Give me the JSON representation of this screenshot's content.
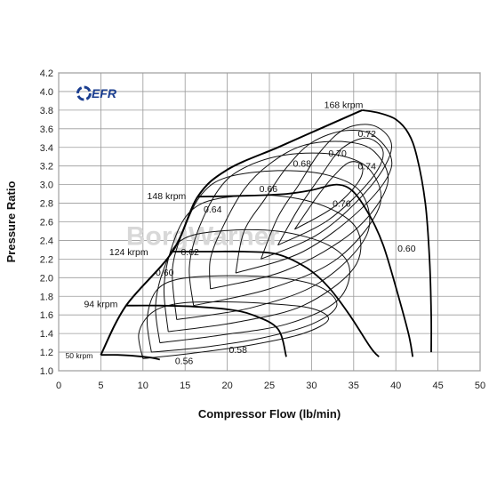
{
  "chart_data": {
    "type": "line",
    "title": "",
    "xlabel": "Compressor Flow (lb/min)",
    "ylabel": "Pressure Ratio",
    "xlim": [
      0,
      50
    ],
    "ylim": [
      1.0,
      4.2
    ],
    "x_ticks": [
      "0",
      "5",
      "10",
      "15",
      "20",
      "25",
      "30",
      "35",
      "40",
      "45",
      "50"
    ],
    "y_ticks": [
      "1.0",
      "1.2",
      "1.4",
      "1.6",
      "1.8",
      "2.0",
      "2.2",
      "2.4",
      "2.6",
      "2.8",
      "3.0",
      "3.2",
      "3.4",
      "3.6",
      "3.8",
      "4.0",
      "4.2"
    ],
    "grid": true,
    "logo": "EFR",
    "watermark": "BorgWarner",
    "speed_lines": [
      {
        "name": "50 krpm",
        "points": [
          [
            5,
            1.17
          ],
          [
            7,
            1.17
          ],
          [
            9,
            1.16
          ],
          [
            11,
            1.14
          ],
          [
            12,
            1.12
          ]
        ]
      },
      {
        "name": "94 krpm",
        "points": [
          [
            8,
            1.7
          ],
          [
            12,
            1.7
          ],
          [
            16,
            1.69
          ],
          [
            20,
            1.66
          ],
          [
            23,
            1.6
          ],
          [
            26,
            1.45
          ],
          [
            27,
            1.15
          ]
        ]
      },
      {
        "name": "124 krpm",
        "points": [
          [
            13.5,
            2.28
          ],
          [
            18,
            2.28
          ],
          [
            22,
            2.28
          ],
          [
            26,
            2.25
          ],
          [
            29.5,
            2.1
          ],
          [
            32,
            1.9
          ],
          [
            34.5,
            1.6
          ],
          [
            37,
            1.25
          ],
          [
            38,
            1.15
          ]
        ]
      },
      {
        "name": "148 krpm",
        "points": [
          [
            16.5,
            2.87
          ],
          [
            22,
            2.88
          ],
          [
            27,
            2.9
          ],
          [
            30,
            2.94
          ],
          [
            33,
            3.0
          ],
          [
            35,
            2.92
          ],
          [
            37,
            2.65
          ],
          [
            38.5,
            2.35
          ],
          [
            40,
            1.9
          ],
          [
            41.5,
            1.4
          ],
          [
            42,
            1.15
          ]
        ]
      },
      {
        "name": "168 krpm",
        "points": [
          [
            36,
            3.8
          ],
          [
            38,
            3.77
          ],
          [
            40,
            3.7
          ],
          [
            41.5,
            3.55
          ],
          [
            42.5,
            3.3
          ],
          [
            43.5,
            2.8
          ],
          [
            44,
            2.2
          ],
          [
            44.2,
            1.6
          ],
          [
            44.2,
            1.2
          ]
        ]
      }
    ],
    "surge_line": [
      [
        5,
        1.17
      ],
      [
        8,
        1.7
      ],
      [
        13.5,
        2.28
      ],
      [
        16.5,
        2.87
      ],
      [
        20,
        3.16
      ],
      [
        26,
        3.4
      ],
      [
        31,
        3.6
      ],
      [
        36,
        3.8
      ]
    ],
    "efficiency_islands": [
      {
        "label": "0.56",
        "points": [
          [
            10,
            1.13
          ],
          [
            16,
            1.19
          ],
          [
            23,
            1.28
          ],
          [
            29,
            1.4
          ],
          [
            32,
            1.55
          ],
          [
            30,
            1.67
          ],
          [
            25,
            1.72
          ],
          [
            19,
            1.74
          ],
          [
            14,
            1.72
          ],
          [
            11,
            1.62
          ],
          [
            9.5,
            1.4
          ],
          [
            10,
            1.13
          ]
        ]
      },
      {
        "label": "0.58",
        "points": [
          [
            11,
            1.2
          ],
          [
            17,
            1.25
          ],
          [
            24,
            1.35
          ],
          [
            30,
            1.5
          ],
          [
            33,
            1.7
          ],
          [
            31,
            1.9
          ],
          [
            26,
            2.0
          ],
          [
            19,
            2.02
          ],
          [
            14,
            1.98
          ],
          [
            11.5,
            1.85
          ],
          [
            10.5,
            1.55
          ],
          [
            11,
            1.2
          ]
        ]
      },
      {
        "label": "0.60",
        "points": [
          [
            12,
            1.3
          ],
          [
            19,
            1.38
          ],
          [
            27,
            1.5
          ],
          [
            33,
            1.75
          ],
          [
            34.5,
            2.1
          ],
          [
            32,
            2.35
          ],
          [
            26,
            2.5
          ],
          [
            19,
            2.5
          ],
          [
            14.5,
            2.4
          ],
          [
            12.5,
            2.1
          ],
          [
            11.5,
            1.7
          ],
          [
            12,
            1.3
          ]
        ]
      },
      {
        "label": "0.62",
        "points": [
          [
            13,
            1.42
          ],
          [
            21,
            1.52
          ],
          [
            29,
            1.7
          ],
          [
            35,
            2.1
          ],
          [
            35.5,
            2.5
          ],
          [
            32,
            2.75
          ],
          [
            26,
            2.88
          ],
          [
            19,
            2.85
          ],
          [
            15.5,
            2.7
          ],
          [
            13.5,
            2.35
          ],
          [
            12.5,
            1.9
          ],
          [
            13,
            1.42
          ]
        ]
      },
      {
        "label": "0.64",
        "points": [
          [
            14,
            1.55
          ],
          [
            23,
            1.68
          ],
          [
            31,
            1.95
          ],
          [
            36.5,
            2.45
          ],
          [
            36,
            2.9
          ],
          [
            32,
            3.1
          ],
          [
            26,
            3.15
          ],
          [
            20,
            3.08
          ],
          [
            17,
            2.9
          ],
          [
            15,
            2.55
          ],
          [
            13.5,
            2.1
          ],
          [
            14,
            1.55
          ]
        ]
      },
      {
        "label": "0.66",
        "points": [
          [
            16,
            1.7
          ],
          [
            25,
            1.88
          ],
          [
            33,
            2.2
          ],
          [
            38,
            2.75
          ],
          [
            37,
            3.15
          ],
          [
            33,
            3.32
          ],
          [
            27,
            3.32
          ],
          [
            22,
            3.18
          ],
          [
            19,
            2.95
          ],
          [
            16.5,
            2.5
          ],
          [
            15.5,
            2.1
          ],
          [
            16,
            1.7
          ]
        ]
      },
      {
        "label": "0.68",
        "points": [
          [
            18,
            1.88
          ],
          [
            27,
            2.08
          ],
          [
            35,
            2.5
          ],
          [
            39,
            3.0
          ],
          [
            37.5,
            3.35
          ],
          [
            34,
            3.46
          ],
          [
            29,
            3.42
          ],
          [
            25,
            3.22
          ],
          [
            22,
            2.95
          ],
          [
            19.5,
            2.55
          ],
          [
            18,
            2.2
          ],
          [
            18,
            1.88
          ]
        ]
      },
      {
        "label": "0.70",
        "points": [
          [
            21,
            2.05
          ],
          [
            29,
            2.28
          ],
          [
            36,
            2.75
          ],
          [
            39.5,
            3.2
          ],
          [
            37.5,
            3.52
          ],
          [
            34,
            3.58
          ],
          [
            30,
            3.45
          ],
          [
            27,
            3.18
          ],
          [
            24.5,
            2.85
          ],
          [
            22,
            2.5
          ],
          [
            21,
            2.05
          ]
        ]
      },
      {
        "label": "0.72",
        "points": [
          [
            24,
            2.2
          ],
          [
            31,
            2.48
          ],
          [
            37,
            2.98
          ],
          [
            39.5,
            3.4
          ],
          [
            37.5,
            3.63
          ],
          [
            34,
            3.6
          ],
          [
            31,
            3.35
          ],
          [
            28.5,
            3.0
          ],
          [
            26,
            2.65
          ],
          [
            24,
            2.2
          ]
        ]
      },
      {
        "label": "0.74",
        "points": [
          [
            26,
            2.35
          ],
          [
            32,
            2.62
          ],
          [
            37,
            3.05
          ],
          [
            38.5,
            3.35
          ],
          [
            36.5,
            3.5
          ],
          [
            33.5,
            3.38
          ],
          [
            31,
            3.08
          ],
          [
            28.5,
            2.75
          ],
          [
            26,
            2.35
          ]
        ]
      },
      {
        "label": "0.76",
        "points": [
          [
            28,
            2.52
          ],
          [
            32.5,
            2.75
          ],
          [
            35.5,
            3.02
          ],
          [
            36,
            3.2
          ],
          [
            34.5,
            3.24
          ],
          [
            32.5,
            3.08
          ],
          [
            30.5,
            2.85
          ],
          [
            28,
            2.52
          ]
        ]
      }
    ],
    "annotations": [
      {
        "text": "168 krpm",
        "x": 31.5,
        "y": 3.86
      },
      {
        "text": "148 krpm",
        "x": 10.5,
        "y": 2.88
      },
      {
        "text": "124 krpm",
        "x": 6,
        "y": 2.28
      },
      {
        "text": "94 krpm",
        "x": 3,
        "y": 1.72
      },
      {
        "text": "50 krpm",
        "x": 0.8,
        "y": 1.17
      },
      {
        "text": "0.72",
        "x": 35.5,
        "y": 3.55
      },
      {
        "text": "0.70",
        "x": 32,
        "y": 3.34
      },
      {
        "text": "0.68",
        "x": 27.8,
        "y": 3.23
      },
      {
        "text": "0.74",
        "x": 35.5,
        "y": 3.2
      },
      {
        "text": "0.66",
        "x": 23.8,
        "y": 2.96
      },
      {
        "text": "0.76",
        "x": 32.5,
        "y": 2.8
      },
      {
        "text": "0.64",
        "x": 17.2,
        "y": 2.74
      },
      {
        "text": "0.62",
        "x": 14.5,
        "y": 2.28
      },
      {
        "text": "0.60",
        "x": 40.2,
        "y": 2.32
      },
      {
        "text": "0.60",
        "x": 11.5,
        "y": 2.06
      },
      {
        "text": "0.58",
        "x": 20.2,
        "y": 1.23
      },
      {
        "text": "0.56",
        "x": 13.8,
        "y": 1.11
      }
    ]
  }
}
